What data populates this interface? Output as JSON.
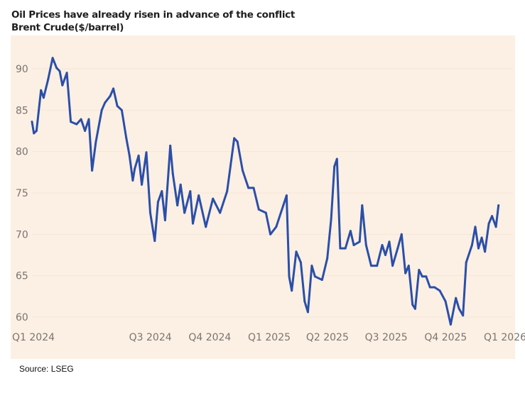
{
  "chart_data": {
    "type": "line",
    "title": "Oil Prices have already risen in advance of the conflict",
    "subtitle": "Brent Crude($/barrel)",
    "source": "Source: LSEG",
    "xlabel": "",
    "ylabel": "",
    "ylim": [
      59,
      92
    ],
    "yticks": [
      60,
      65,
      70,
      75,
      80,
      85,
      90
    ],
    "xticks": [
      {
        "label": "Q1 2024",
        "date": "2024-01-01"
      },
      {
        "label": "Q3 2024",
        "date": "2024-07-01"
      },
      {
        "label": "Q4 2024",
        "date": "2024-10-01"
      },
      {
        "label": "Q1 2025",
        "date": "2025-01-01"
      },
      {
        "label": "Q2 2025",
        "date": "2025-04-01"
      },
      {
        "label": "Q3 2025",
        "date": "2025-07-01"
      },
      {
        "label": "Q4 2025",
        "date": "2025-10-01"
      },
      {
        "label": "Q1 2026",
        "date": "2026-01-01"
      }
    ],
    "grid": true,
    "legend": "none",
    "line_color": "#2b4fa8",
    "background_color": "#fcf0e4",
    "series": [
      {
        "name": "Brent Crude ($/barrel)",
        "points": [
          [
            "2024-01-02",
            83.6
          ],
          [
            "2024-01-05",
            82.2
          ],
          [
            "2024-01-09",
            82.5
          ],
          [
            "2024-01-16",
            87.4
          ],
          [
            "2024-01-20",
            86.5
          ],
          [
            "2024-01-27",
            88.7
          ],
          [
            "2024-02-03",
            91.3
          ],
          [
            "2024-02-09",
            90.1
          ],
          [
            "2024-02-14",
            89.7
          ],
          [
            "2024-02-18",
            88.0
          ],
          [
            "2024-02-25",
            89.5
          ],
          [
            "2024-03-02",
            83.6
          ],
          [
            "2024-03-11",
            83.3
          ],
          [
            "2024-03-18",
            83.9
          ],
          [
            "2024-03-24",
            82.5
          ],
          [
            "2024-03-30",
            83.9
          ],
          [
            "2024-04-04",
            77.7
          ],
          [
            "2024-04-10",
            81.2
          ],
          [
            "2024-04-19",
            85.0
          ],
          [
            "2024-04-24",
            85.9
          ],
          [
            "2024-05-02",
            86.7
          ],
          [
            "2024-05-07",
            87.6
          ],
          [
            "2024-05-13",
            85.5
          ],
          [
            "2024-05-20",
            85.0
          ],
          [
            "2024-05-27",
            81.6
          ],
          [
            "2024-06-01",
            79.5
          ],
          [
            "2024-06-06",
            76.5
          ],
          [
            "2024-06-09",
            77.9
          ],
          [
            "2024-06-15",
            79.5
          ],
          [
            "2024-06-20",
            76.0
          ],
          [
            "2024-06-27",
            79.9
          ],
          [
            "2024-07-03",
            72.6
          ],
          [
            "2024-07-10",
            69.2
          ],
          [
            "2024-07-15",
            73.9
          ],
          [
            "2024-07-21",
            75.2
          ],
          [
            "2024-07-26",
            71.7
          ],
          [
            "2024-08-03",
            80.7
          ],
          [
            "2024-08-07",
            77.3
          ],
          [
            "2024-08-14",
            73.5
          ],
          [
            "2024-08-19",
            76.0
          ],
          [
            "2024-08-25",
            72.6
          ],
          [
            "2024-09-03",
            75.2
          ],
          [
            "2024-09-07",
            71.3
          ],
          [
            "2024-09-16",
            74.7
          ],
          [
            "2024-09-27",
            70.9
          ],
          [
            "2024-10-08",
            74.3
          ],
          [
            "2024-10-19",
            72.6
          ],
          [
            "2024-10-30",
            75.2
          ],
          [
            "2024-11-10",
            81.6
          ],
          [
            "2024-11-15",
            81.2
          ],
          [
            "2024-11-23",
            77.7
          ],
          [
            "2024-12-02",
            75.6
          ],
          [
            "2024-12-10",
            75.6
          ],
          [
            "2024-12-18",
            73.0
          ],
          [
            "2024-12-29",
            72.6
          ],
          [
            "2025-01-05",
            70.0
          ],
          [
            "2025-01-14",
            70.9
          ],
          [
            "2025-01-25",
            73.5
          ],
          [
            "2025-01-30",
            74.7
          ],
          [
            "2025-02-03",
            64.9
          ],
          [
            "2025-02-07",
            63.2
          ],
          [
            "2025-02-14",
            67.9
          ],
          [
            "2025-02-21",
            66.6
          ],
          [
            "2025-02-27",
            61.9
          ],
          [
            "2025-03-04",
            60.6
          ],
          [
            "2025-03-10",
            66.2
          ],
          [
            "2025-03-15",
            64.9
          ],
          [
            "2025-03-26",
            64.5
          ],
          [
            "2025-04-03",
            67.1
          ],
          [
            "2025-04-09",
            71.8
          ],
          [
            "2025-04-14",
            78.2
          ],
          [
            "2025-04-18",
            79.1
          ],
          [
            "2025-04-23",
            68.3
          ],
          [
            "2025-05-01",
            68.3
          ],
          [
            "2025-05-09",
            70.4
          ],
          [
            "2025-05-14",
            68.7
          ],
          [
            "2025-05-23",
            69.1
          ],
          [
            "2025-05-27",
            73.5
          ],
          [
            "2025-06-02",
            68.7
          ],
          [
            "2025-06-10",
            66.2
          ],
          [
            "2025-06-19",
            66.2
          ],
          [
            "2025-06-27",
            68.7
          ],
          [
            "2025-07-02",
            67.5
          ],
          [
            "2025-07-08",
            69.1
          ],
          [
            "2025-07-13",
            66.2
          ],
          [
            "2025-07-21",
            68.3
          ],
          [
            "2025-07-27",
            70.0
          ],
          [
            "2025-08-02",
            65.3
          ],
          [
            "2025-08-07",
            66.2
          ],
          [
            "2025-08-13",
            61.5
          ],
          [
            "2025-08-17",
            61.0
          ],
          [
            "2025-08-23",
            65.7
          ],
          [
            "2025-08-28",
            64.9
          ],
          [
            "2025-09-03",
            64.9
          ],
          [
            "2025-09-09",
            63.6
          ],
          [
            "2025-09-16",
            63.6
          ],
          [
            "2025-09-24",
            63.2
          ],
          [
            "2025-10-03",
            61.9
          ],
          [
            "2025-10-11",
            59.1
          ],
          [
            "2025-10-19",
            62.3
          ],
          [
            "2025-10-24",
            61.0
          ],
          [
            "2025-10-30",
            60.2
          ],
          [
            "2025-11-04",
            66.6
          ],
          [
            "2025-11-13",
            68.7
          ],
          [
            "2025-11-18",
            70.9
          ],
          [
            "2025-11-23",
            68.3
          ],
          [
            "2025-11-28",
            69.6
          ],
          [
            "2025-12-03",
            67.9
          ],
          [
            "2025-12-09",
            71.3
          ],
          [
            "2025-12-14",
            72.2
          ],
          [
            "2025-12-20",
            70.9
          ],
          [
            "2025-12-24",
            73.5
          ]
        ]
      }
    ]
  }
}
